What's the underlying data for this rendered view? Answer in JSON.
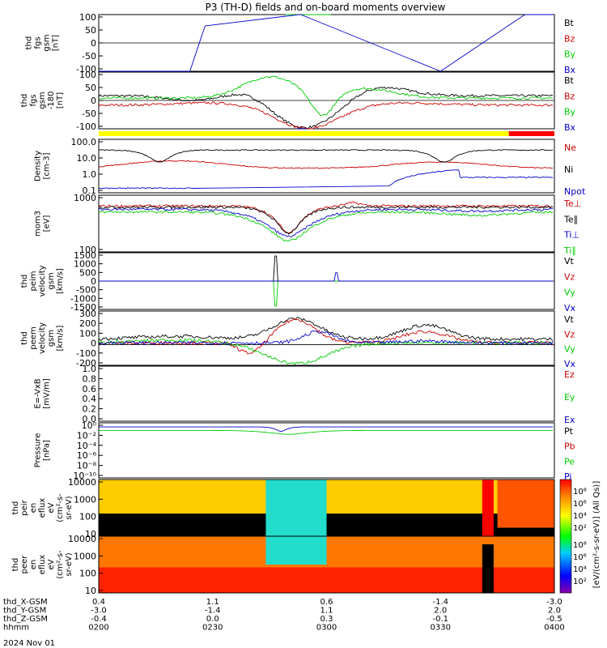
{
  "title": "P3 (TH-D) fields and on-board moments overview",
  "date_label": "2024 Nov 01",
  "status_bar": {
    "colors": [
      "#ffff00",
      "#ff0000"
    ],
    "split_time": "0348"
  },
  "chart_data": [
    {
      "type": "line",
      "ylabel": [
        "thd",
        "fgs",
        "gsm",
        "[nT]"
      ],
      "ylim": [
        -100,
        100
      ],
      "yticks": [
        "100",
        "50",
        "0",
        "-50",
        "-100"
      ],
      "series": [
        {
          "name": "Bt",
          "color": "#000000"
        },
        {
          "name": "Bz",
          "color": "#cc0000"
        },
        {
          "name": "By",
          "color": "#00cc00"
        },
        {
          "name": "Bx",
          "color": "#0000cc"
        }
      ]
    },
    {
      "type": "line",
      "ylabel": [
        "thd",
        "fgs",
        "gsm",
        "-180",
        "[nT]"
      ],
      "ylim": [
        -120,
        120
      ],
      "yticks": [
        "100",
        "50",
        "0",
        "-50",
        "-100"
      ],
      "series": [
        {
          "name": "Bt",
          "color": "#000000"
        },
        {
          "name": "Bz",
          "color": "#cc0000"
        },
        {
          "name": "By",
          "color": "#00cc00"
        },
        {
          "name": "Bx",
          "color": "#0000cc"
        }
      ]
    },
    {
      "type": "line",
      "scale": "log",
      "ylabel": [
        "Density",
        "[cm-3]"
      ],
      "ylim": [
        0.05,
        150
      ],
      "yticks": [
        "100.0",
        "10.0",
        "1.0",
        "0.1"
      ],
      "series": [
        {
          "name": "Ne",
          "color": "#cc0000"
        },
        {
          "name": "Ni",
          "color": "#000000"
        },
        {
          "name": "Npot",
          "color": "#0000cc"
        }
      ]
    },
    {
      "type": "line",
      "scale": "log",
      "ylabel": [
        "mom3",
        "[eV]"
      ],
      "ylim": [
        40,
        5000
      ],
      "yticks": [
        "1000",
        "100"
      ],
      "series": [
        {
          "name": "Te⊥",
          "color": "#cc0000"
        },
        {
          "name": "Te∥",
          "color": "#000000"
        },
        {
          "name": "Ti⊥",
          "color": "#0000cc"
        },
        {
          "name": "Ti∥",
          "color": "#00cc00"
        }
      ]
    },
    {
      "type": "line",
      "ylabel": [
        "thd",
        "peim",
        "velocity",
        "gsm",
        "[km/s]"
      ],
      "ylim": [
        -1700,
        1700
      ],
      "yticks": [
        "1500",
        "1000",
        "500",
        "0",
        "-500",
        "-1000",
        "-1500"
      ],
      "series": [
        {
          "name": "Vt",
          "color": "#000000"
        },
        {
          "name": "Vz",
          "color": "#cc0000"
        },
        {
          "name": "Vy",
          "color": "#00cc00"
        },
        {
          "name": "Vx",
          "color": "#0000cc"
        }
      ]
    },
    {
      "type": "line",
      "ylabel": [
        "thd",
        "peem",
        "velocity",
        "gsm",
        "[km/s]"
      ],
      "ylim": [
        -220,
        360
      ],
      "yticks": [
        "300",
        "200",
        "100",
        "0",
        "-100",
        "-200"
      ],
      "series": [
        {
          "name": "Vt",
          "color": "#000000"
        },
        {
          "name": "Vz",
          "color": "#cc0000"
        },
        {
          "name": "Vy",
          "color": "#00cc00"
        },
        {
          "name": "Vx",
          "color": "#0000cc"
        }
      ]
    },
    {
      "type": "line",
      "ylabel": [
        "E=-VxB",
        "[mV/m]"
      ],
      "ylim": [
        0,
        1
      ],
      "yticks": [
        "1.0",
        "0.8",
        "0.6",
        "0.4",
        "0.2",
        "0.0"
      ],
      "series": [
        {
          "name": "Ez",
          "color": "#cc0000"
        },
        {
          "name": "Ey",
          "color": "#00cc00"
        },
        {
          "name": "Ex",
          "color": "#0000cc"
        }
      ]
    },
    {
      "type": "line",
      "scale": "log",
      "ylabel": [
        "Pressure",
        "[nPa]"
      ],
      "ylim": [
        1e-10,
        10
      ],
      "yticks": [
        "10⁰",
        "10⁻²",
        "10⁻⁴",
        "10⁻⁶",
        "10⁻⁸",
        "10⁻¹⁰"
      ],
      "series": [
        {
          "name": "Pt",
          "color": "#000000"
        },
        {
          "name": "Pb",
          "color": "#cc0000"
        },
        {
          "name": "Pe",
          "color": "#00cc00"
        },
        {
          "name": "Pi",
          "color": "#0000cc"
        }
      ]
    },
    {
      "type": "heatmap",
      "ylabel": [
        "thd",
        "peir",
        "en",
        "eflux",
        "eV",
        "(cm²-s-",
        "sr-eV)"
      ],
      "yticks": [
        "10000",
        "1000",
        "100",
        "10"
      ],
      "colorbar_ticks": [
        "10⁸",
        "10⁶",
        "10⁴",
        "10²"
      ]
    },
    {
      "type": "heatmap",
      "ylabel": [
        "thd",
        "peer",
        "en",
        "eflux",
        "eV",
        "(cm²-s-",
        "sr-eV)"
      ],
      "yticks": [
        "10000",
        "1000",
        "100",
        "10"
      ],
      "colorbar_ticks": [
        "10⁸",
        "10⁶",
        "10⁴",
        "10²"
      ]
    }
  ],
  "colorbar_label": "[eV/(cm²-s-sr-eV)] (All Qs)]",
  "x_axis": {
    "rows": [
      {
        "label": "thd_X-GSM",
        "values": [
          "0.4",
          "1.1",
          "0.6",
          "-1.4",
          "-3.0"
        ]
      },
      {
        "label": "thd_Y-GSM",
        "values": [
          "-3.0",
          "-1.4",
          "1.1",
          "2.0",
          "2.0"
        ]
      },
      {
        "label": "thd_Z-GSM",
        "values": [
          "-0.4",
          "0.0",
          "0.3",
          "-0.1",
          "-0.5"
        ]
      },
      {
        "label": "hhmm",
        "values": [
          "0200",
          "0230",
          "0300",
          "0330",
          "0400"
        ]
      }
    ]
  }
}
